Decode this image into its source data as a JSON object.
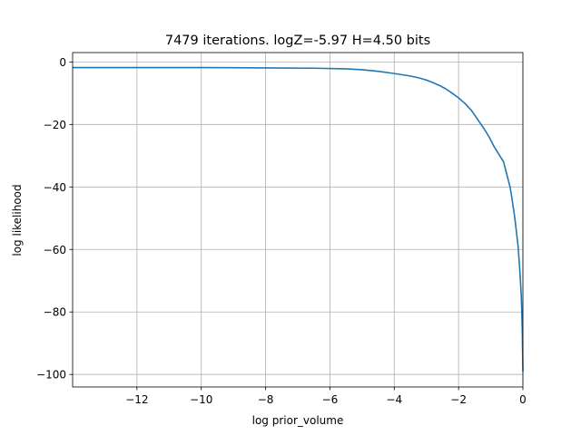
{
  "chart_data": {
    "type": "line",
    "title": "7479 iterations. logZ=-5.97 H=4.50 bits",
    "xlabel": "log prior_volume",
    "ylabel": "log likelihood",
    "xlim": [
      -14,
      0
    ],
    "ylim": [
      -104,
      3
    ],
    "grid": true,
    "x_ticks": [
      -12,
      -10,
      -8,
      -6,
      -4,
      -2,
      0
    ],
    "x_tick_labels": [
      "−12",
      "−10",
      "−8",
      "−6",
      "−4",
      "−2",
      "0"
    ],
    "y_ticks": [
      0,
      -20,
      -40,
      -60,
      -80,
      -100
    ],
    "y_tick_labels": [
      "0",
      "−20",
      "−40",
      "−60",
      "−80",
      "−100"
    ],
    "series": [
      {
        "color": "#1f77b4",
        "x": [
          -14,
          -12,
          -10,
          -8,
          -6.5,
          -5.5,
          -5,
          -4.5,
          -4,
          -3.5,
          -3.2,
          -3,
          -2.8,
          -2.6,
          -2.4,
          -2.2,
          -2,
          -1.8,
          -1.6,
          -1.4,
          -1.2,
          -1.05,
          -0.9,
          -0.75,
          -0.6,
          -0.5,
          -0.4,
          -0.35,
          -0.3,
          -0.25,
          -0.2,
          -0.15,
          -0.1,
          -0.05,
          -0.02,
          0
        ],
        "y": [
          -1.8,
          -1.8,
          -1.8,
          -1.9,
          -2.0,
          -2.2,
          -2.5,
          -3.0,
          -3.7,
          -4.5,
          -5.2,
          -5.8,
          -6.6,
          -7.5,
          -8.6,
          -10.0,
          -11.5,
          -13.3,
          -15.5,
          -18.5,
          -21.5,
          -24.0,
          -27.0,
          -29.5,
          -32.0,
          -36.0,
          -40.0,
          -43.0,
          -46.5,
          -50.0,
          -54.5,
          -59.0,
          -66.0,
          -75.0,
          -85.0,
          -99.0
        ]
      }
    ]
  }
}
